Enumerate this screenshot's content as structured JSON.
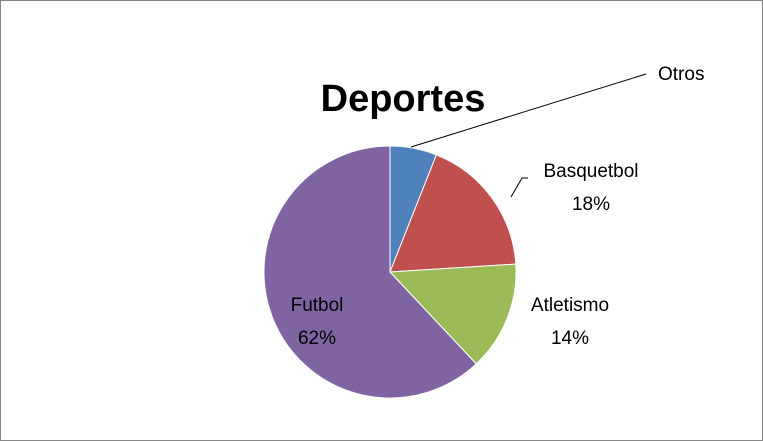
{
  "chart_data": {
    "type": "pie",
    "title": "Deportes",
    "slices": [
      {
        "name": "Otros",
        "value": 6,
        "label": "",
        "color": "#4F81BD"
      },
      {
        "name": "Basquetbol",
        "value": 18,
        "label": "18%",
        "color": "#C0504D"
      },
      {
        "name": "Atletismo",
        "value": 14,
        "label": "14%",
        "color": "#9BBB59"
      },
      {
        "name": "Futbol",
        "value": 62,
        "label": "62%",
        "color": "#8064A2"
      }
    ],
    "start_angle": "12 o'clock",
    "direction": "clockwise",
    "legend": "none"
  }
}
